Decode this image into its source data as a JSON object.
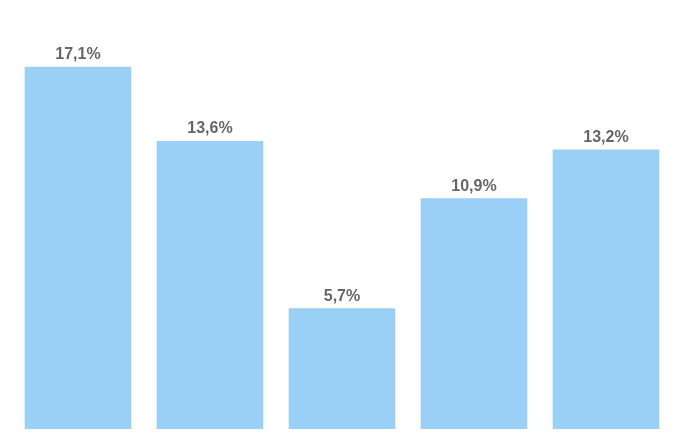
{
  "chart_data": {
    "type": "bar",
    "categories": [
      null,
      null,
      null,
      null,
      null
    ],
    "values": [
      17.1,
      13.6,
      5.7,
      10.9,
      13.2
    ],
    "value_labels": [
      "17,1%",
      "13,6%",
      "5,7%",
      "10,9%",
      "13,2%"
    ],
    "data_labels": true,
    "ylim": [
      0,
      19.5
    ],
    "tick_labels": false,
    "grid": false
  }
}
